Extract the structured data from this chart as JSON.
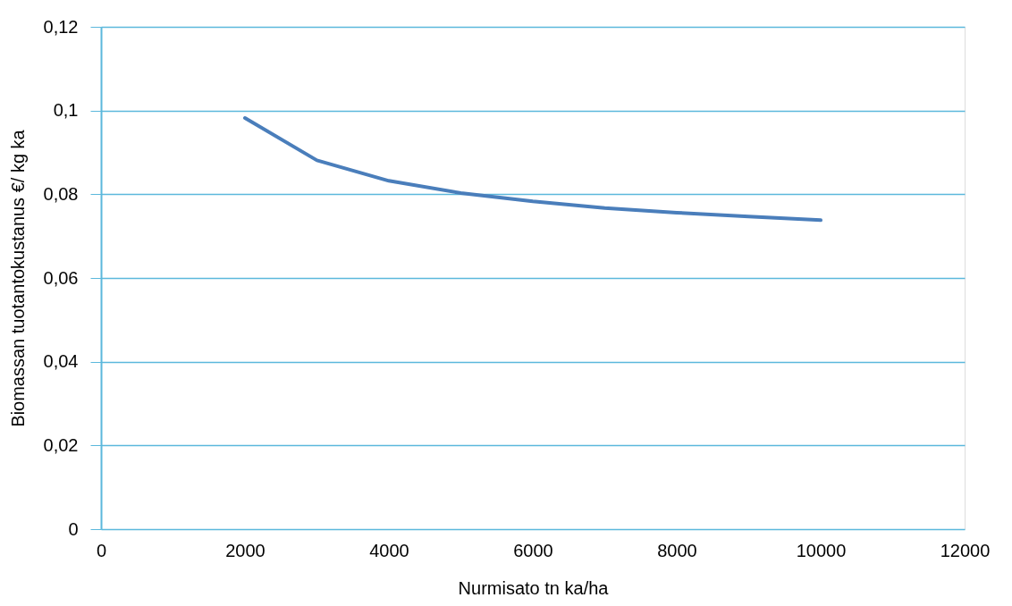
{
  "chart_data": {
    "type": "line",
    "xlabel": "Nurmisato tn ka/ha",
    "ylabel": "Biomassan  tuotantokustanus  €/ kg ka",
    "x": [
      2000,
      3000,
      4000,
      5000,
      6000,
      7000,
      8000,
      9000,
      10000
    ],
    "series": [
      {
        "color": "#4a7ebb",
        "values": [
          0.0982,
          0.0881,
          0.0832,
          0.0803,
          0.0783,
          0.0767,
          0.0756,
          0.0747,
          0.0738
        ]
      }
    ],
    "xlim": [
      0,
      12000
    ],
    "xticks": [
      0,
      2000,
      4000,
      6000,
      8000,
      10000,
      12000
    ],
    "ylim": [
      0,
      0.12
    ],
    "yticks": [
      {
        "value": 0,
        "label": "0"
      },
      {
        "value": 0.02,
        "label": "0,02"
      },
      {
        "value": 0.04,
        "label": "0,04"
      },
      {
        "value": 0.06,
        "label": "0,06"
      },
      {
        "value": 0.08,
        "label": "0,08"
      },
      {
        "value": 0.1,
        "label": "0,1"
      },
      {
        "value": 0.12,
        "label": "0,12"
      }
    ],
    "grid": "y",
    "marker": "none",
    "line_style": "solid"
  }
}
